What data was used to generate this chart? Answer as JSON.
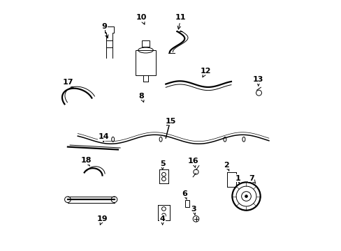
{
  "bg_color": "#ffffff",
  "line_color": "#000000",
  "label_color": "#000000",
  "fig_width": 4.89,
  "fig_height": 3.6,
  "dpi": 100,
  "label_positions": {
    "9": [
      0.235,
      0.895,
      0.252,
      0.838
    ],
    "10": [
      0.383,
      0.93,
      0.4,
      0.893
    ],
    "11": [
      0.54,
      0.93,
      0.528,
      0.873
    ],
    "8": [
      0.383,
      0.618,
      0.393,
      0.59
    ],
    "17": [
      0.092,
      0.672,
      0.118,
      0.645
    ],
    "12": [
      0.64,
      0.718,
      0.625,
      0.69
    ],
    "13": [
      0.848,
      0.682,
      0.848,
      0.648
    ],
    "15": [
      0.5,
      0.518,
      0.482,
      0.498
    ],
    "14": [
      0.232,
      0.455,
      0.232,
      0.432
    ],
    "5": [
      0.467,
      0.348,
      0.467,
      0.322
    ],
    "16": [
      0.59,
      0.358,
      0.598,
      0.33
    ],
    "2": [
      0.722,
      0.342,
      0.732,
      0.318
    ],
    "18": [
      0.163,
      0.36,
      0.178,
      0.338
    ],
    "1": [
      0.768,
      0.29,
      0.772,
      0.268
    ],
    "7": [
      0.82,
      0.29,
      0.838,
      0.268
    ],
    "6": [
      0.555,
      0.228,
      0.563,
      0.205
    ],
    "3": [
      0.592,
      0.168,
      0.596,
      0.142
    ],
    "4": [
      0.467,
      0.128,
      0.467,
      0.102
    ],
    "19": [
      0.228,
      0.128,
      0.218,
      0.102
    ]
  }
}
